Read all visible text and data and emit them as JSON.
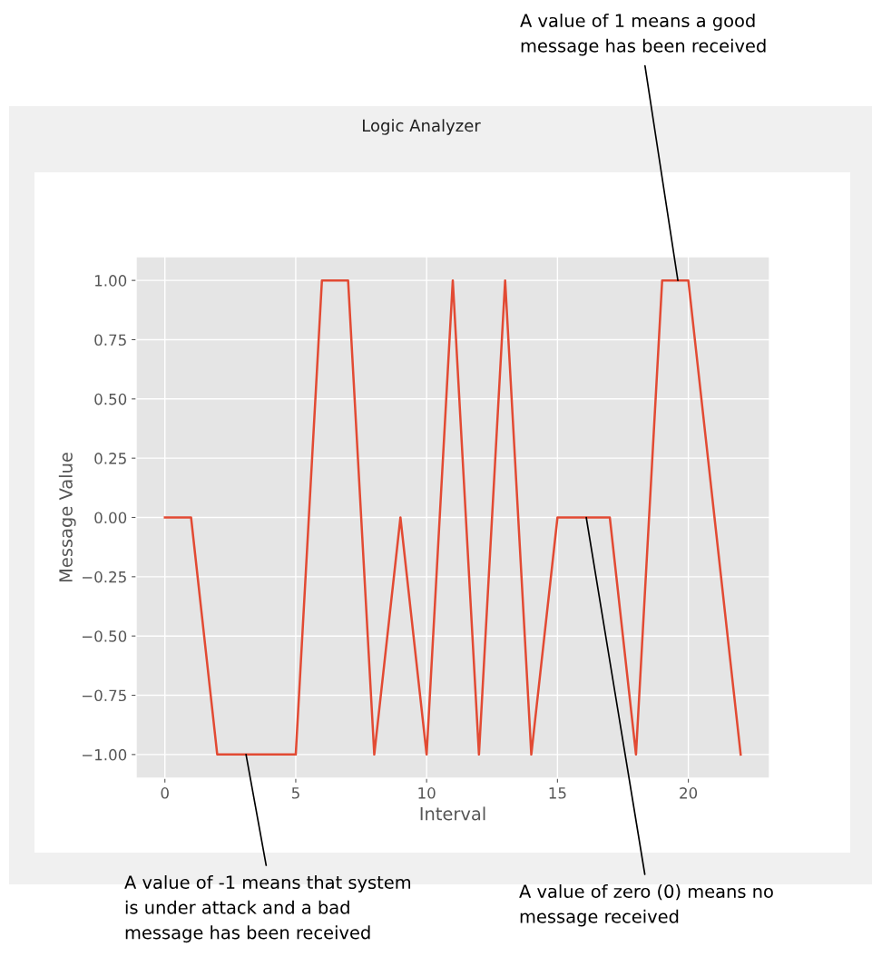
{
  "chart_data": {
    "type": "line",
    "title": "Logic Analyzer",
    "xlabel": "Interval",
    "ylabel": "Message Value",
    "x": [
      0,
      1,
      2,
      3,
      4,
      5,
      6,
      7,
      8,
      9,
      10,
      11,
      12,
      13,
      14,
      15,
      16,
      17,
      18,
      19,
      20,
      21,
      22
    ],
    "series": [
      {
        "color": "#e24a33",
        "values": [
          0,
          0,
          -1,
          -1,
          -1,
          -1,
          1,
          1,
          -1,
          0,
          -1,
          1,
          -1,
          1,
          -1,
          0,
          0,
          0,
          -1,
          1,
          1,
          0,
          -1
        ]
      }
    ],
    "xlim": [
      -1.1,
      23.1
    ],
    "xticks": [
      0,
      5,
      10,
      15,
      20
    ],
    "ylim": [
      -1.1,
      1.1
    ],
    "yticks": [
      {
        "value": -1,
        "label": "−1.00"
      },
      {
        "value": -0.75,
        "label": "−0.75"
      },
      {
        "value": -0.5,
        "label": "−0.50"
      },
      {
        "value": -0.25,
        "label": "−0.25"
      },
      {
        "value": 0,
        "label": "0.00"
      },
      {
        "value": 0.25,
        "label": "0.25"
      },
      {
        "value": 0.5,
        "label": "0.50"
      },
      {
        "value": 0.75,
        "label": "0.75"
      },
      {
        "value": 1,
        "label": "1.00"
      }
    ],
    "grid": true,
    "marker": "none",
    "line_style": "solid",
    "annotations": [
      {
        "text": "A value of 1 means a good\nmessage has been received",
        "x": 19.6,
        "y": 1
      },
      {
        "text": "A value of -1 means that system\nis under attack and a bad\nmessage has been received",
        "x": 3.1,
        "y": -1
      },
      {
        "text": "A value of zero (0) means no\nmessage received",
        "x": 16.1,
        "y": 0
      }
    ]
  }
}
